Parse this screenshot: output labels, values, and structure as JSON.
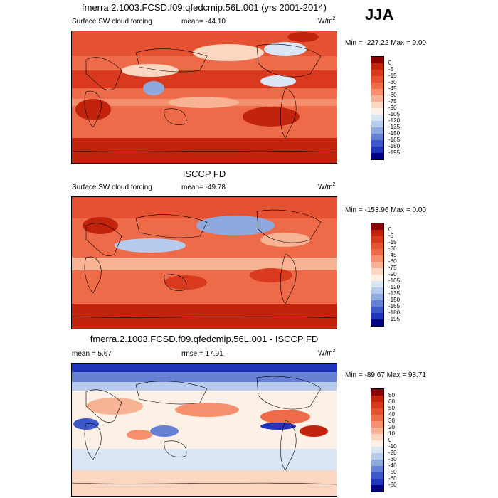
{
  "header": {
    "season": "JJA"
  },
  "panels": [
    {
      "id": "model",
      "title": "fmerra.2.1003.FCSD.f09.qfedcmip.56L.001 (yrs 2001-2014)",
      "left_text": "Surface SW cloud forcing",
      "center_text": "mean= -44.10",
      "units": "W/m",
      "units_sup": "2",
      "minmax": "Min = -227.22 Max =   0.00",
      "colorbar": {
        "labels": [
          "0",
          "-5",
          "-15",
          "-30",
          "-45",
          "-60",
          "-75",
          "-90",
          "-105",
          "-120",
          "-135",
          "-150",
          "-165",
          "-180",
          "-195"
        ],
        "colors": [
          "#8b0000",
          "#c1230d",
          "#d9391d",
          "#e45232",
          "#ee6b4a",
          "#f4906d",
          "#f7b394",
          "#fbd6c0",
          "#fdf0e6",
          "#dbe6f5",
          "#b7cbec",
          "#8fa8de",
          "#6680d3",
          "#3d58c8",
          "#1f36bb",
          "#000080"
        ]
      }
    },
    {
      "id": "obs",
      "title": "ISCCP FD",
      "left_text": "Surface SW cloud forcing",
      "center_text": "mean= -49.78",
      "units": "W/m",
      "units_sup": "2",
      "minmax": "Min = -153.96 Max =   0.00",
      "colorbar": {
        "labels": [
          "0",
          "-5",
          "-15",
          "-30",
          "-45",
          "-60",
          "-75",
          "-90",
          "-105",
          "-120",
          "-135",
          "-150",
          "-165",
          "-180",
          "-195"
        ],
        "colors": [
          "#8b0000",
          "#c1230d",
          "#d9391d",
          "#e45232",
          "#ee6b4a",
          "#f4906d",
          "#f7b394",
          "#fbd6c0",
          "#fdf0e6",
          "#dbe6f5",
          "#b7cbec",
          "#8fa8de",
          "#6680d3",
          "#3d58c8",
          "#1f36bb",
          "#000080"
        ]
      }
    },
    {
      "id": "diff",
      "title": "fmerra.2.1003.FCSD.f09.qfedcmip.56L.001 - ISCCP FD",
      "left_text": "mean =   5.67",
      "center_text": "rmse =  17.91",
      "units": "W/m",
      "units_sup": "2",
      "minmax": "Min = -89.67 Max =  93.71",
      "colorbar": {
        "labels": [
          "80",
          "60",
          "50",
          "40",
          "30",
          "20",
          "10",
          "0",
          "-10",
          "-20",
          "-30",
          "-40",
          "-50",
          "-60",
          "-80"
        ],
        "colors": [
          "#8b0000",
          "#c1230d",
          "#d9391d",
          "#e45232",
          "#ee6b4a",
          "#f4906d",
          "#f7b394",
          "#fbd6c0",
          "#fdf0e6",
          "#dbe6f5",
          "#b7cbec",
          "#8fa8de",
          "#6680d3",
          "#3d58c8",
          "#1f36bb",
          "#000080"
        ]
      }
    }
  ],
  "chart_data": [
    {
      "type": "heatmap",
      "title": "fmerra.2.1003.FCSD.f09.qfedcmip.56L.001 (yrs 2001-2014)",
      "subtitle": "Surface SW cloud forcing",
      "mean": -44.1,
      "min": -227.22,
      "max": 0.0,
      "units": "W/m2",
      "levels": [
        0,
        -5,
        -15,
        -30,
        -45,
        -60,
        -75,
        -90,
        -105,
        -120,
        -135,
        -150,
        -165,
        -180,
        -195
      ]
    },
    {
      "type": "heatmap",
      "title": "ISCCP FD",
      "subtitle": "Surface SW cloud forcing",
      "mean": -49.78,
      "min": -153.96,
      "max": 0.0,
      "units": "W/m2",
      "levels": [
        0,
        -5,
        -15,
        -30,
        -45,
        -60,
        -75,
        -90,
        -105,
        -120,
        -135,
        -150,
        -165,
        -180,
        -195
      ]
    },
    {
      "type": "heatmap",
      "title": "fmerra.2.1003.FCSD.f09.qfedcmip.56L.001 - ISCCP FD",
      "mean": 5.67,
      "rmse": 17.91,
      "min": -89.67,
      "max": 93.71,
      "units": "W/m2",
      "levels": [
        80,
        60,
        50,
        40,
        30,
        20,
        10,
        0,
        -10,
        -20,
        -30,
        -40,
        -50,
        -60,
        -80
      ]
    }
  ]
}
